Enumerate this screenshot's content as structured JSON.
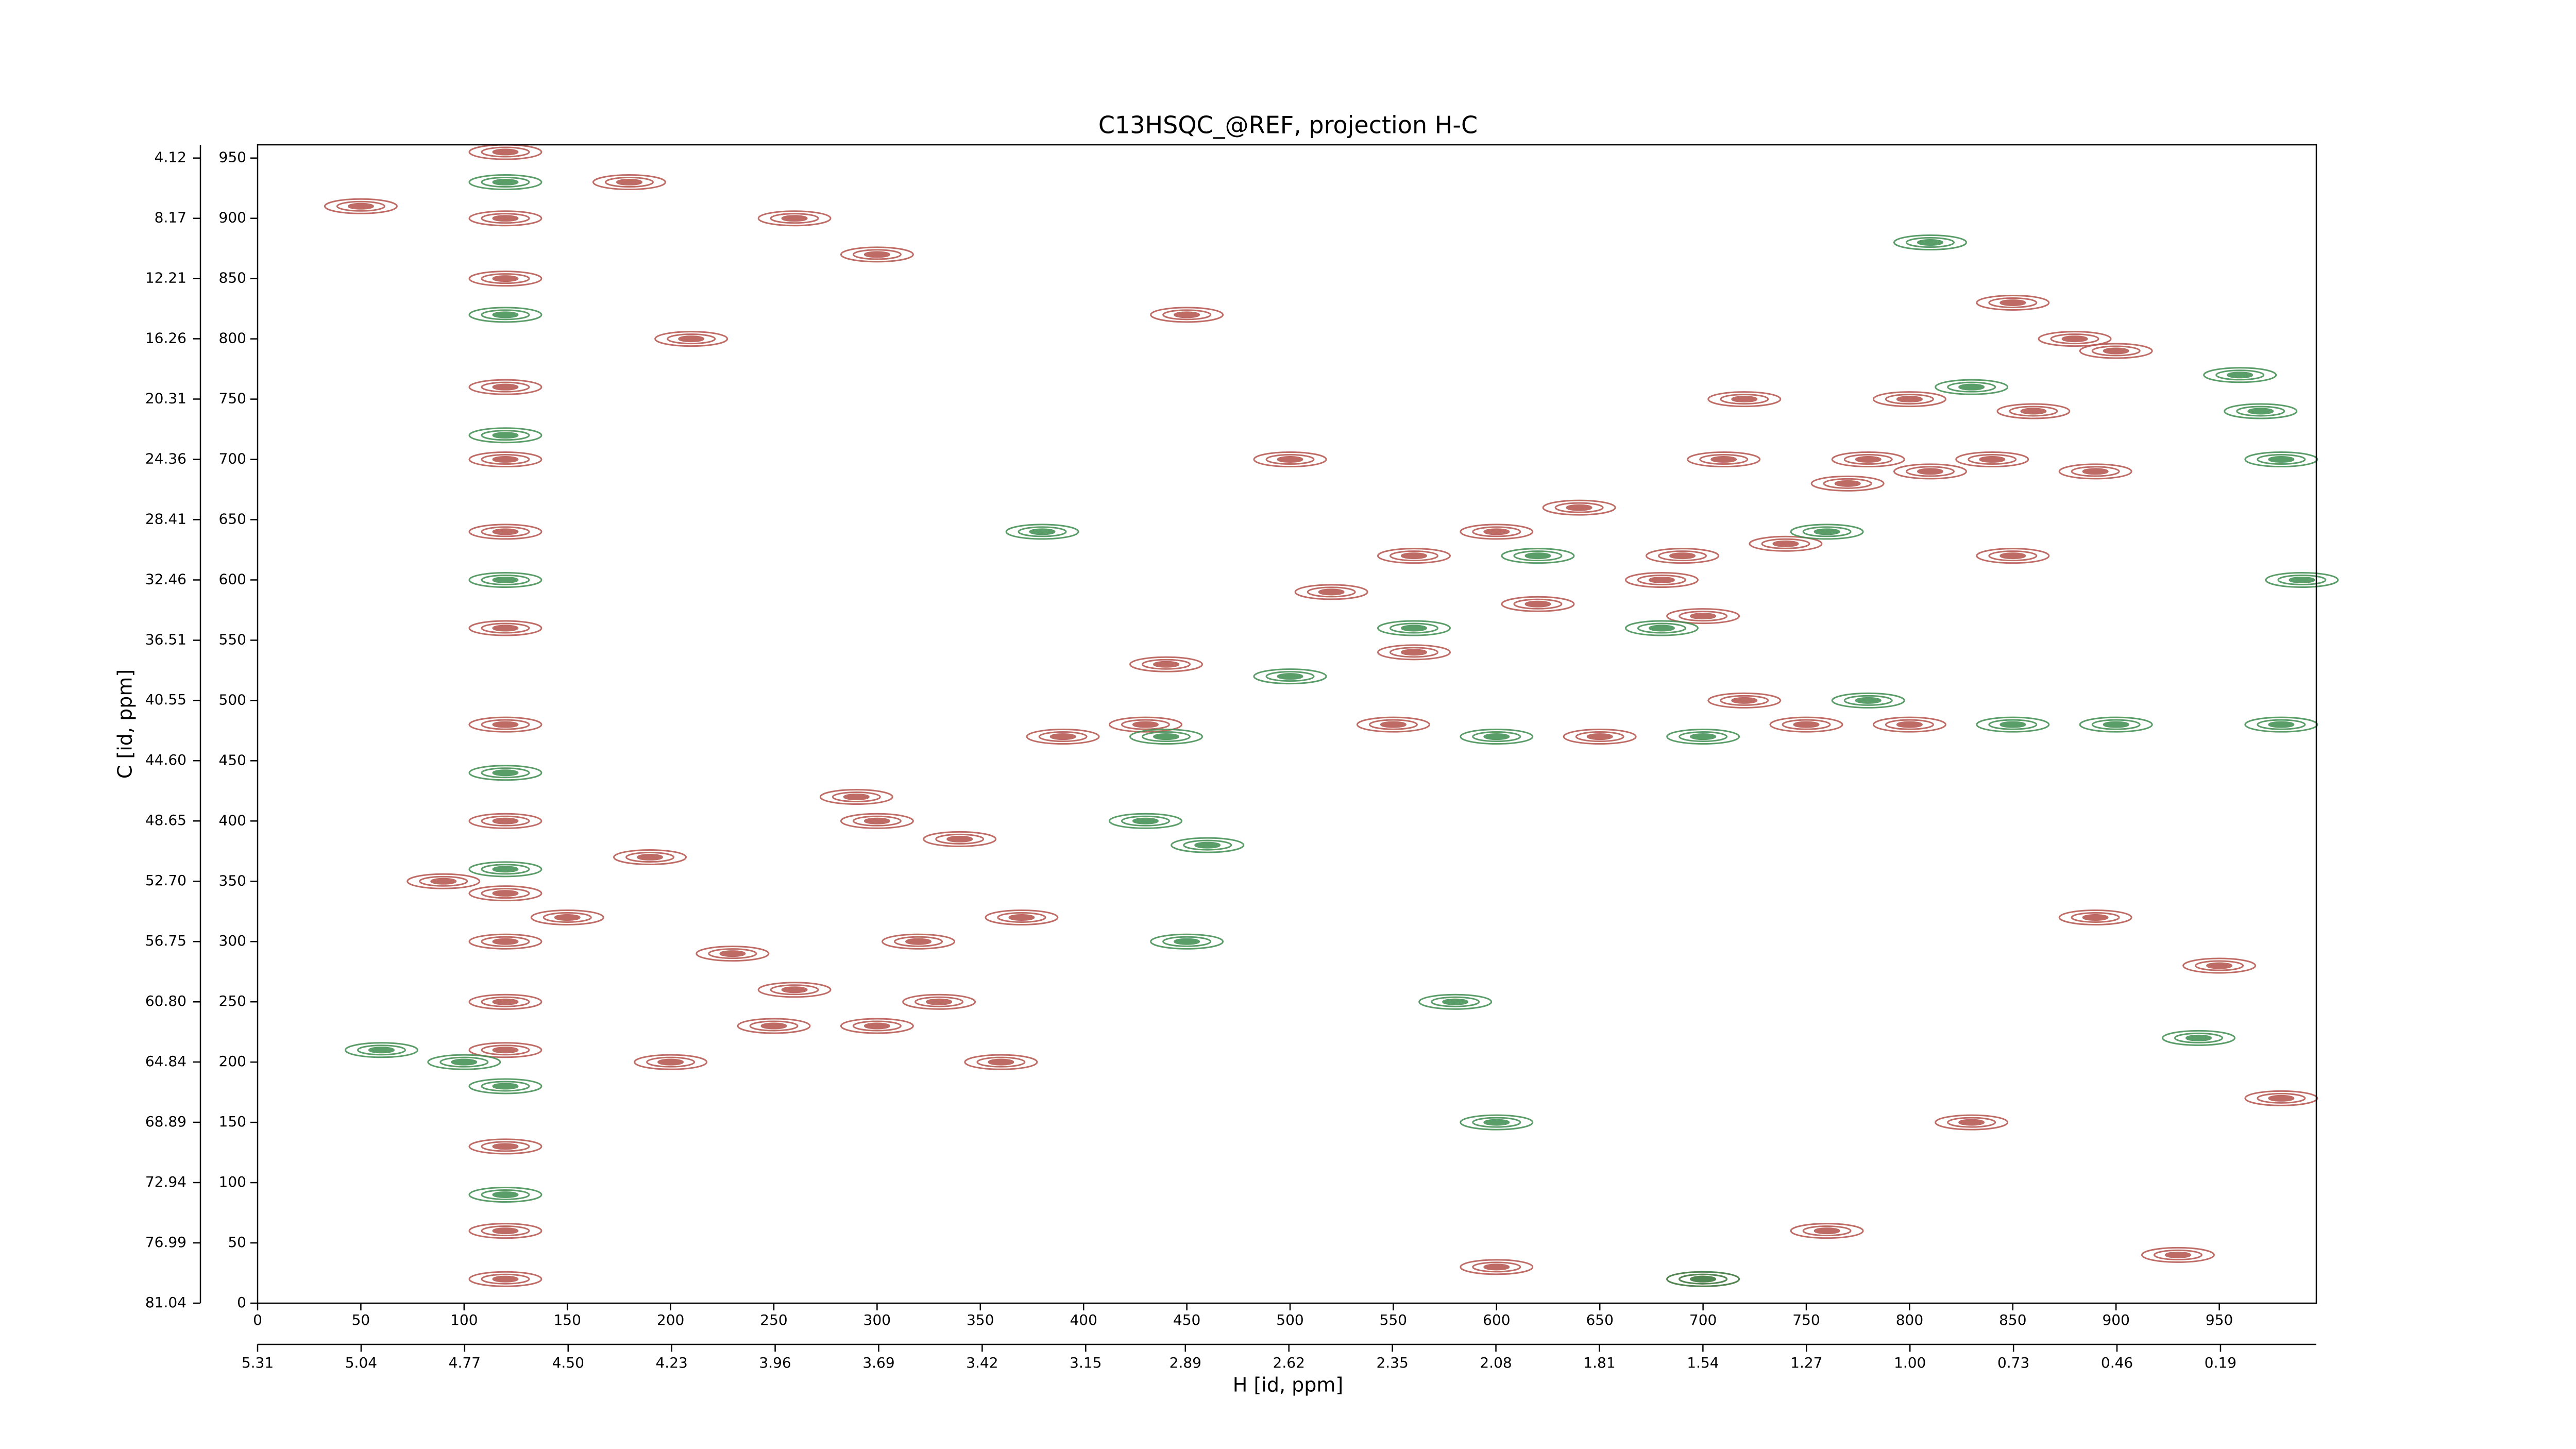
{
  "chart_data": {
    "type": "contour",
    "title": "C13HSQC_@REF, projection H-C",
    "xlabel": "H [id, ppm]",
    "ylabel": "C [id, ppm]",
    "xlim": [
      0,
      997
    ],
    "xticks": [
      0,
      50,
      100,
      150,
      200,
      250,
      300,
      350,
      400,
      450,
      500,
      550,
      600,
      650,
      700,
      750,
      800,
      850,
      900,
      950
    ],
    "x2lim": [
      5.31,
      -0.06
    ],
    "x2ticks": [
      5.31,
      5.04,
      4.77,
      {
        "value": 4.5,
        "label": "4.50"
      },
      4.23,
      3.96,
      3.69,
      3.42,
      3.15,
      2.89,
      2.62,
      2.35,
      2.08,
      1.81,
      1.54,
      1.27,
      {
        "value": 1,
        "label": "1.00"
      },
      0.73,
      0.46,
      0.19
    ],
    "ylim": [
      0,
      961
    ],
    "yticks": [
      0,
      50,
      100,
      150,
      200,
      250,
      300,
      350,
      400,
      450,
      500,
      550,
      600,
      650,
      700,
      750,
      800,
      850,
      900,
      950
    ],
    "y2lim": [
      81.04,
      3.23
    ],
    "y2ticks": [
      81.04,
      76.99,
      72.94,
      68.89,
      64.84,
      {
        "value": 60.8,
        "label": "60.80"
      },
      56.75,
      {
        "value": 52.7,
        "label": "52.70"
      },
      48.65,
      {
        "value": 44.6,
        "label": "44.60"
      },
      40.55,
      36.51,
      32.46,
      28.41,
      24.36,
      20.31,
      16.26,
      12.21,
      8.17,
      4.12
    ],
    "series": [
      {
        "color": "#b5524b",
        "x": [
          120,
          120,
          120,
          120,
          120,
          120,
          120,
          120,
          120,
          120,
          120,
          120,
          120,
          120,
          120,
          120,
          90,
          150,
          190,
          230,
          260,
          300,
          320,
          300,
          290,
          340,
          370,
          360,
          330,
          250,
          200,
          390,
          430,
          440,
          520,
          560,
          600,
          640,
          690,
          700,
          720,
          750,
          800,
          650,
          550,
          560,
          620,
          680,
          740,
          770,
          840,
          860,
          880,
          900,
          850,
          800,
          720,
          710,
          780,
          890,
          850,
          810,
          890,
          50,
          180,
          300,
          450,
          500,
          950,
          980,
          760,
          830,
          930,
          600,
          700,
          210,
          260
        ],
        "y": [
          955,
          900,
          850,
          760,
          700,
          640,
          560,
          480,
          400,
          340,
          300,
          250,
          210,
          130,
          60,
          20,
          350,
          320,
          370,
          290,
          260,
          230,
          300,
          400,
          420,
          385,
          320,
          200,
          250,
          230,
          200,
          470,
          480,
          530,
          590,
          620,
          640,
          660,
          620,
          570,
          500,
          480,
          480,
          470,
          480,
          540,
          580,
          600,
          630,
          680,
          700,
          740,
          800,
          790,
          830,
          750,
          750,
          700,
          700,
          690,
          620,
          690,
          320,
          910,
          930,
          870,
          820,
          700,
          280,
          170,
          60,
          150,
          40,
          30,
          20,
          800,
          900
        ]
      },
      {
        "color": "#3d8c4f",
        "x": [
          120,
          120,
          120,
          120,
          120,
          120,
          120,
          120,
          60,
          100,
          380,
          440,
          450,
          460,
          500,
          600,
          700,
          780,
          850,
          900,
          980,
          960,
          980,
          970,
          830,
          760,
          680,
          620,
          560,
          600,
          700,
          430,
          580,
          810,
          990,
          940
        ],
        "y": [
          930,
          820,
          720,
          600,
          440,
          360,
          180,
          90,
          210,
          200,
          640,
          470,
          300,
          380,
          520,
          470,
          470,
          500,
          480,
          480,
          480,
          770,
          700,
          740,
          760,
          640,
          560,
          620,
          560,
          150,
          20,
          400,
          250,
          880,
          600,
          220
        ]
      }
    ]
  }
}
